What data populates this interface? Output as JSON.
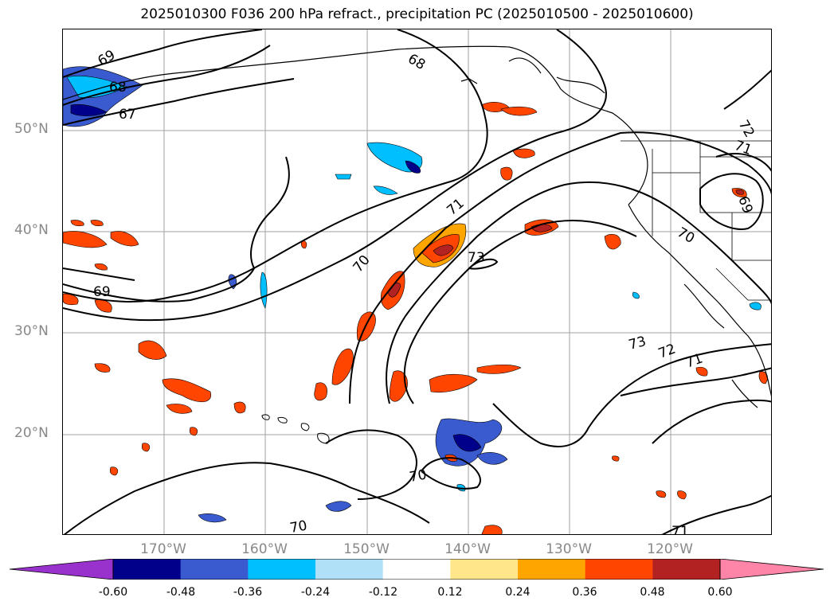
{
  "title": "2025010300 F036 200 hPa refract., precipitation PC (2025010500 - 2025010600)",
  "lat_labels": [
    "50°N",
    "40°N",
    "30°N",
    "20°N"
  ],
  "lon_labels": [
    "170°W",
    "160°W",
    "150°W",
    "140°W",
    "130°W",
    "120°W"
  ],
  "contour_labels": [
    "69",
    "68",
    "67",
    "68",
    "72",
    "71",
    "69",
    "70",
    "71",
    "70",
    "69",
    "73",
    "73",
    "72",
    "71",
    "70",
    "70",
    "71"
  ],
  "colorbar": {
    "ticks": [
      "-0.60",
      "-0.48",
      "-0.36",
      "-0.24",
      "-0.12",
      "0.12",
      "0.24",
      "0.36",
      "0.48",
      "0.60"
    ],
    "colors": {
      "under": "#9932cc",
      "bins": [
        "#00008b",
        "#3a5bcf",
        "#00bfff",
        "#b0e0f8",
        "#ffffff",
        "#ffe68a",
        "#ffa500",
        "#ff4500",
        "#b22222"
      ],
      "over": "#ff85a8"
    }
  }
}
